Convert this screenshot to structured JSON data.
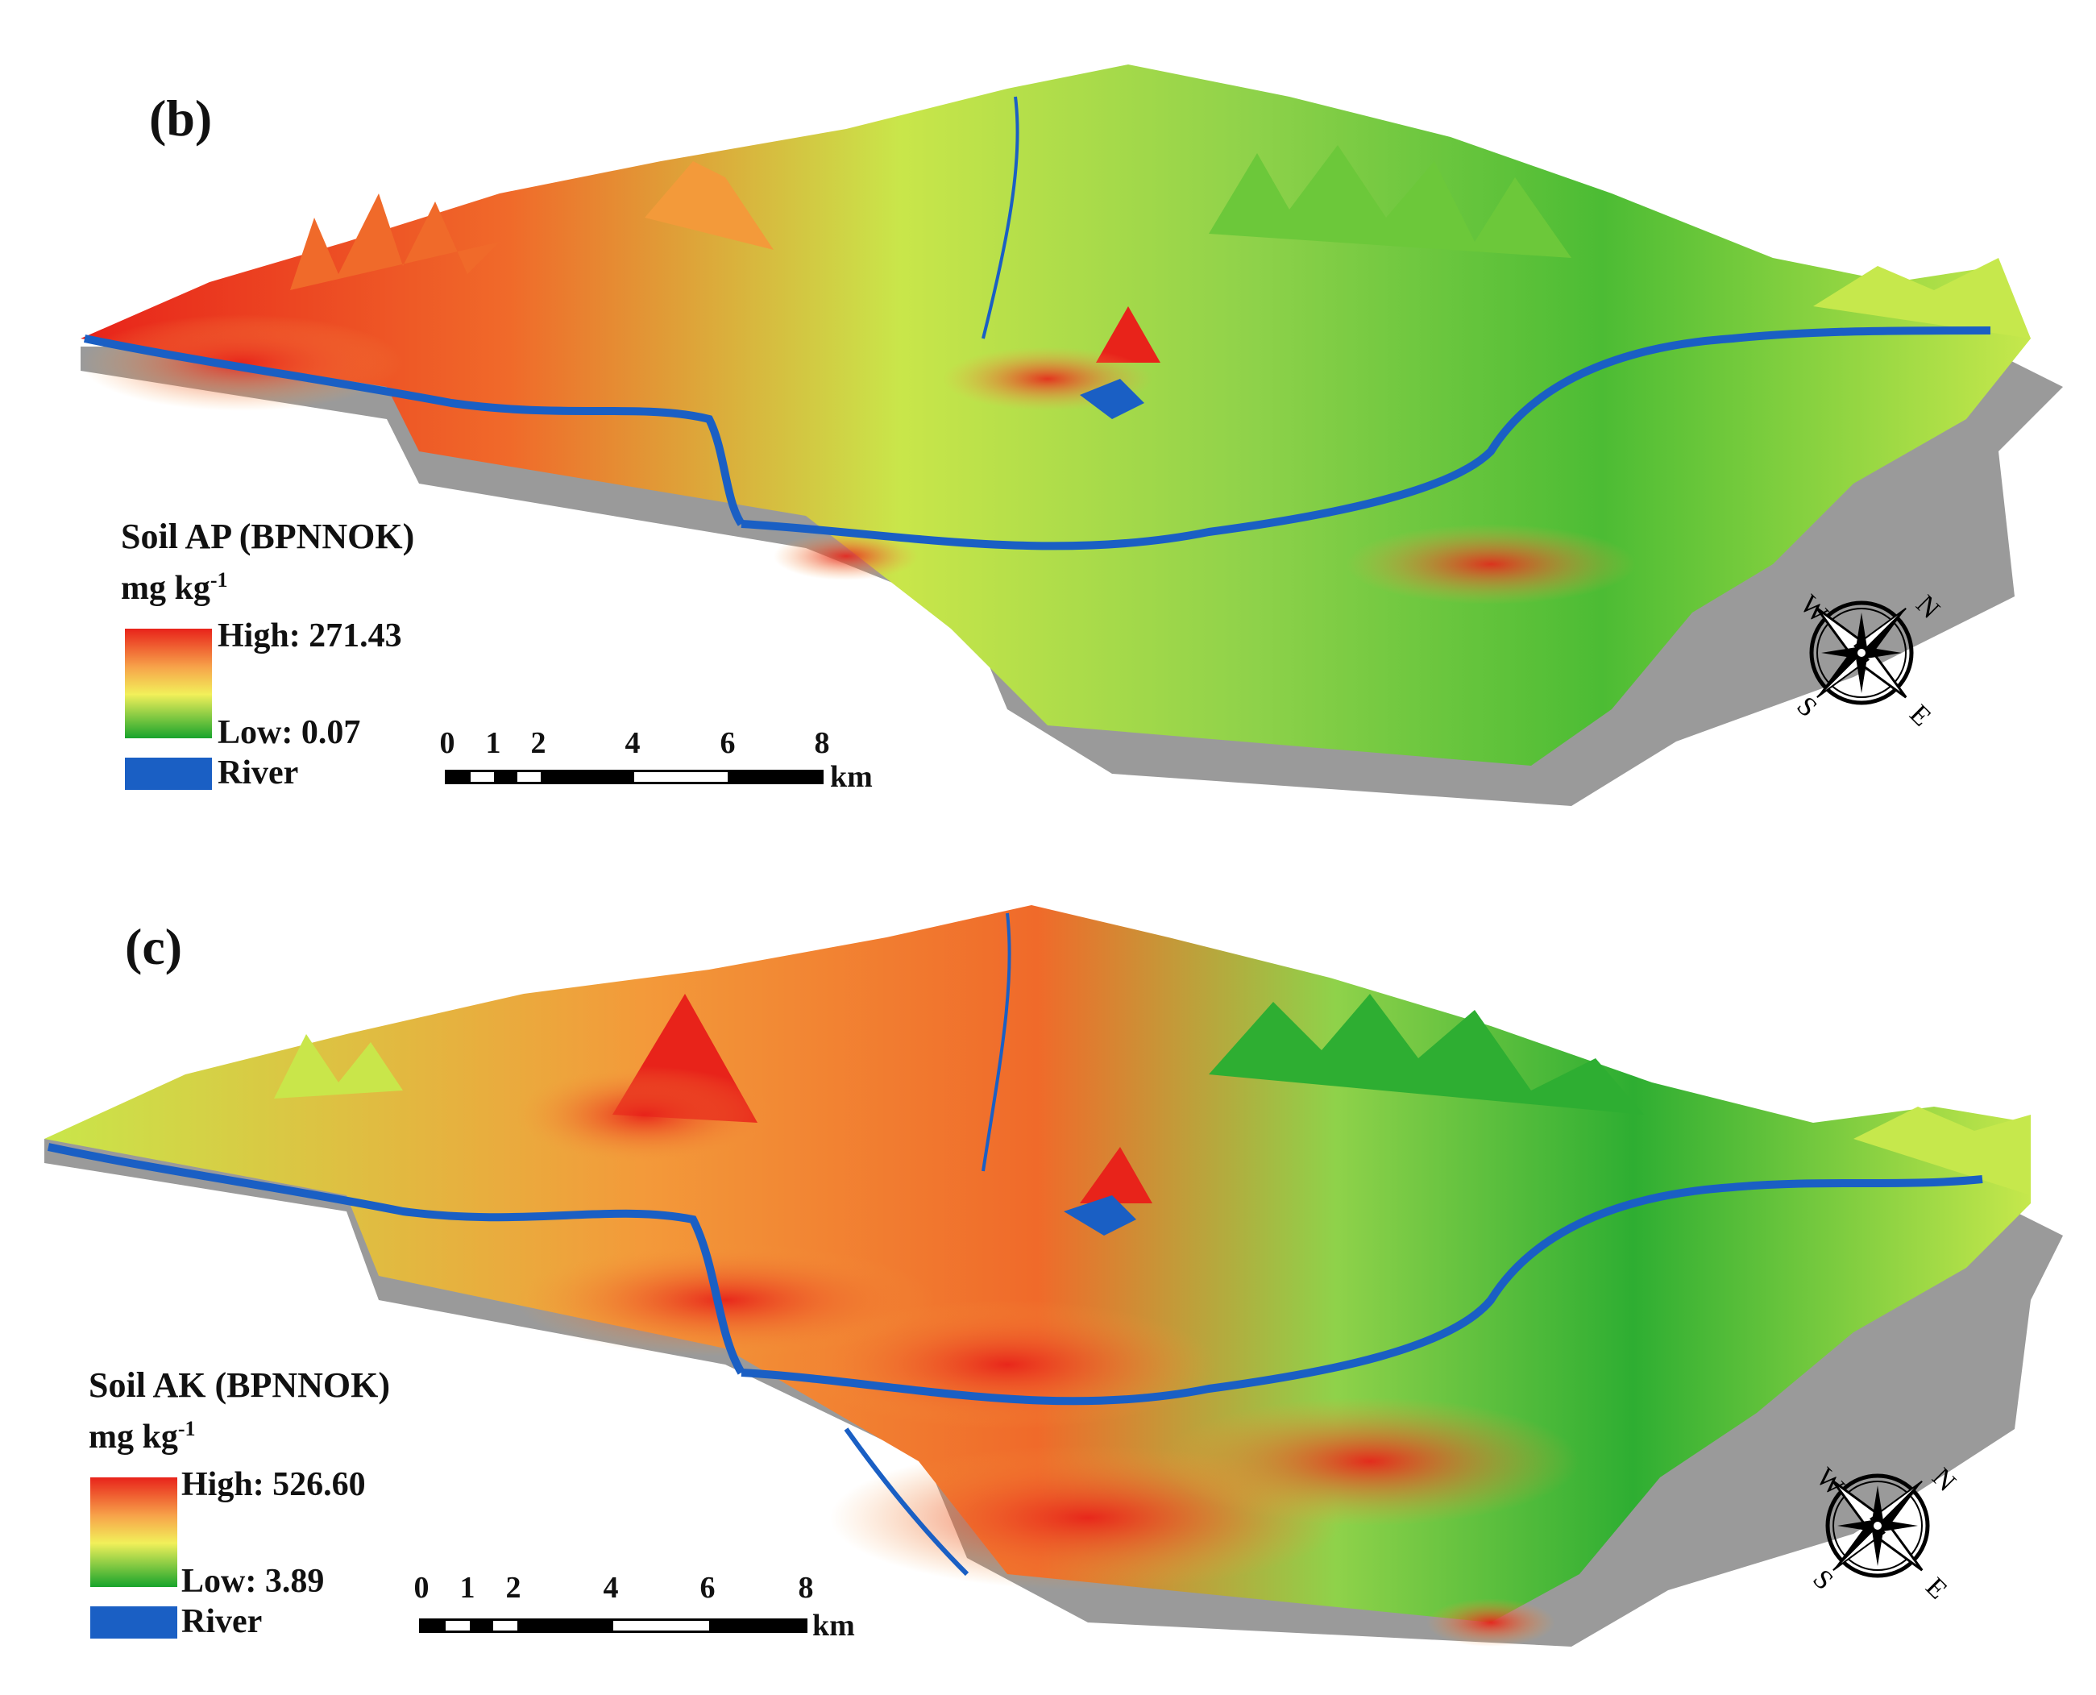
{
  "colors": {
    "high": "#e8231a",
    "mid_high": "#f7a34a",
    "mid": "#f2f05a",
    "low": "#18a42c",
    "river": "#1a5fc4",
    "base": "#9a9a9a"
  },
  "panels": [
    {
      "label": "(b)",
      "title": "Soil AP (BPNNOK)",
      "unit_text": "mg kg",
      "unit_sup": "-1",
      "high_label": "High: 271.43",
      "low_label": "Low: 0.07",
      "high_value": 271.43,
      "low_value": 0.07,
      "river_label": "River",
      "scale_ticks": [
        "0",
        "1",
        "2",
        "4",
        "6",
        "8"
      ],
      "scale_unit": "km",
      "compass": {
        "n": "N",
        "e": "E",
        "s": "S",
        "w": "W"
      }
    },
    {
      "label": "(c)",
      "title": "Soil AK (BPNNOK)",
      "unit_text": "mg kg",
      "unit_sup": "-1",
      "high_label": "High: 526.60",
      "low_label": "Low: 3.89",
      "high_value": 526.6,
      "low_value": 3.89,
      "river_label": "River",
      "scale_ticks": [
        "0",
        "1",
        "2",
        "4",
        "6",
        "8"
      ],
      "scale_unit": "km",
      "compass": {
        "n": "N",
        "e": "E",
        "s": "S",
        "w": "W"
      }
    }
  ]
}
